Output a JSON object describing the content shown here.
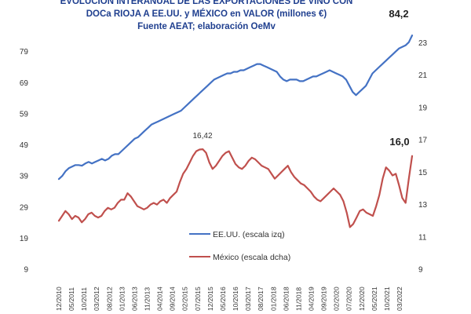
{
  "chart_data": {
    "type": "line",
    "title": [
      "EVOLUCION INTERANUAL DE LAS EXPORTACIONES DE VINO CON",
      "DOCa RIOJA A EE.UU. y MÉXICO en VALOR (millones €)",
      "Fuente AEAT; elaboración OeMv"
    ],
    "y_left": {
      "ticks": [
        9,
        19,
        29,
        39,
        49,
        59,
        69,
        79
      ],
      "range": [
        9,
        86
      ]
    },
    "y_right": {
      "ticks": [
        9,
        11,
        13,
        15,
        17,
        19,
        21,
        23
      ],
      "range": [
        9,
        23.8
      ]
    },
    "x_ticks": [
      "12/2010",
      "05/2011",
      "10/2011",
      "03/2012",
      "08/2012",
      "01/2013",
      "06/2013",
      "11/2013",
      "04/2014",
      "09/2014",
      "02/2015",
      "07/2015",
      "12/2015",
      "05/2016",
      "10/2016",
      "03/2017",
      "08/2017",
      "01/2018",
      "06/2018",
      "11/2018",
      "04/2019",
      "09/2019",
      "02/2020",
      "07/2020",
      "12/2020",
      "05/2021",
      "10/2021",
      "03/2022"
    ],
    "series": [
      {
        "name": "EE.UU. (escala izq)",
        "axis": "left",
        "color": "#4472c4",
        "values": [
          38,
          39,
          40.5,
          41.5,
          42,
          42.5,
          42.5,
          42.3,
          43,
          43.5,
          43,
          43.5,
          44,
          44.5,
          44,
          44.5,
          45.5,
          46,
          46,
          47,
          48,
          49,
          50,
          51,
          51.5,
          52.5,
          53.5,
          54.5,
          55.5,
          56,
          56.5,
          57,
          57.5,
          58,
          58.5,
          59,
          59.5,
          60,
          61,
          62,
          63,
          64,
          65,
          66,
          67,
          68,
          69,
          70,
          70.5,
          71,
          71.5,
          72,
          72,
          72.5,
          72.5,
          73,
          73,
          73.5,
          74,
          74.5,
          75,
          75,
          74.5,
          74,
          73.5,
          73,
          72.5,
          71,
          70,
          69.5,
          70,
          70,
          70,
          69.5,
          69.5,
          70,
          70.5,
          71,
          71,
          71.5,
          72,
          72.5,
          73,
          72.5,
          72,
          71.5,
          71,
          70,
          68,
          66,
          65,
          66,
          67,
          68,
          70,
          72,
          73,
          74,
          75,
          76,
          77,
          78,
          79,
          80,
          80.5,
          81,
          82,
          84.2
        ],
        "callout": "84,2"
      },
      {
        "name": "México (escala dcha)",
        "axis": "right",
        "color": "#c0504d",
        "values": [
          12.0,
          12.3,
          12.6,
          12.4,
          12.1,
          12.3,
          12.2,
          11.9,
          12.1,
          12.4,
          12.5,
          12.3,
          12.2,
          12.3,
          12.6,
          12.8,
          12.7,
          12.8,
          13.1,
          13.3,
          13.3,
          13.7,
          13.5,
          13.2,
          12.9,
          12.8,
          12.7,
          12.8,
          13.0,
          13.1,
          13.0,
          13.2,
          13.3,
          13.1,
          13.4,
          13.6,
          13.8,
          14.4,
          14.9,
          15.2,
          15.6,
          16.0,
          16.3,
          16.4,
          16.42,
          16.2,
          15.6,
          15.2,
          15.4,
          15.7,
          16.0,
          16.2,
          16.3,
          15.9,
          15.5,
          15.3,
          15.2,
          15.4,
          15.7,
          15.9,
          15.8,
          15.6,
          15.4,
          15.3,
          15.2,
          14.9,
          14.6,
          14.8,
          15.0,
          15.2,
          15.4,
          15.0,
          14.7,
          14.5,
          14.3,
          14.2,
          14.0,
          13.8,
          13.5,
          13.3,
          13.2,
          13.4,
          13.6,
          13.8,
          14.0,
          13.8,
          13.6,
          13.2,
          12.5,
          11.6,
          11.8,
          12.2,
          12.6,
          12.7,
          12.5,
          12.4,
          12.3,
          12.9,
          13.6,
          14.6,
          15.3,
          15.1,
          14.8,
          14.9,
          14.2,
          13.4,
          13.1,
          14.6,
          16.0
        ],
        "peak_label": "16,42",
        "peak_index": 44,
        "callout": "16,0"
      }
    ],
    "legend": {
      "position": "bottom-left"
    },
    "grid": false
  }
}
